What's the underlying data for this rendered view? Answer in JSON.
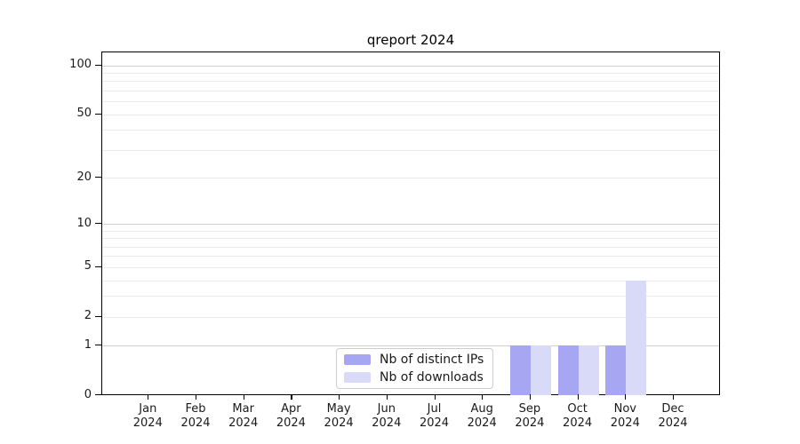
{
  "title": "qreport 2024",
  "chart_data": {
    "type": "bar",
    "title": "qreport 2024",
    "x": {
      "months": [
        "Jan",
        "Feb",
        "Mar",
        "Apr",
        "May",
        "Jun",
        "Jul",
        "Aug",
        "Sep",
        "Oct",
        "Nov",
        "Dec"
      ],
      "year": "2024"
    },
    "series": [
      {
        "name": "Nb of distinct IPs",
        "color": "#a6a6f2",
        "values": [
          0,
          0,
          0,
          0,
          0,
          0,
          0,
          0,
          1,
          1,
          1,
          0
        ]
      },
      {
        "name": "Nb of downloads",
        "color": "#d9d9f8",
        "values": [
          0,
          0,
          0,
          0,
          0,
          0,
          0,
          0,
          1,
          1,
          4,
          0
        ]
      }
    ],
    "yscale": "log1p",
    "ylim": [
      0,
      120
    ],
    "y_ticks": [
      0,
      1,
      2,
      5,
      10,
      20,
      50,
      100
    ],
    "grid": {
      "major_lines": [
        1,
        10,
        100
      ],
      "minor_lines": [
        2,
        3,
        4,
        5,
        6,
        7,
        8,
        9,
        20,
        30,
        40,
        50,
        60,
        70,
        80,
        90
      ],
      "major_color": "#d0d0d0",
      "minor_color": "#ebebeb"
    },
    "legend_position": "lower center"
  },
  "colors": {
    "background": "#ffffff",
    "axis": "#000000",
    "text": "#1a1a1a"
  }
}
